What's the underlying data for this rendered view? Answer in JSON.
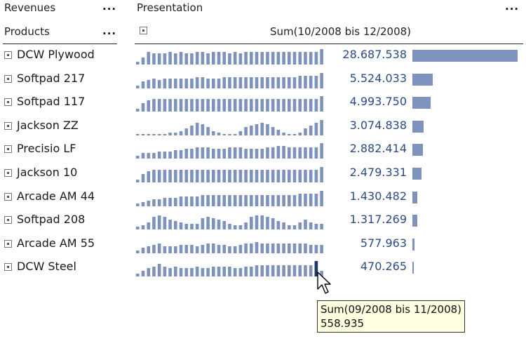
{
  "header": {
    "revenues_label": "Revenues",
    "products_label": "Products",
    "presentation_label": "Presentation",
    "sum_label": "Sum(10/2008 bis 12/2008)",
    "menu_dots": "..."
  },
  "products": [
    {
      "name": "DCW Plywood",
      "value": "28.687.538",
      "amount": 28687538,
      "spark": [
        2,
        5,
        9,
        8,
        8,
        8,
        9,
        8,
        9,
        8,
        8,
        9,
        9,
        8,
        9,
        9,
        9,
        8,
        9,
        8,
        9,
        9,
        9,
        9,
        9,
        9,
        9,
        9,
        9,
        9,
        9,
        9,
        9,
        9,
        11
      ]
    },
    {
      "name": "Softpad 217",
      "value": "5.524.033",
      "amount": 5524033,
      "spark": [
        2,
        5,
        6,
        7,
        6,
        7,
        7,
        7,
        7,
        7,
        7,
        8,
        8,
        7,
        7,
        7,
        8,
        8,
        8,
        8,
        8,
        8,
        8,
        8,
        8,
        8,
        8,
        8,
        8,
        8,
        9,
        9,
        9,
        9,
        11
      ]
    },
    {
      "name": "Softpad 117",
      "value": "4.993.750",
      "amount": 4993750,
      "spark": [
        2,
        6,
        8,
        9,
        9,
        9,
        9,
        9,
        9,
        9,
        9,
        9,
        9,
        9,
        9,
        9,
        9,
        9,
        9,
        9,
        9,
        9,
        9,
        9,
        9,
        9,
        9,
        9,
        9,
        9,
        9,
        9,
        9,
        9,
        11
      ]
    },
    {
      "name": "Jackson ZZ",
      "value": "3.074.838",
      "amount": 3074838,
      "spark": [
        1,
        1,
        1,
        1,
        1,
        1,
        2,
        2,
        3,
        5,
        7,
        9,
        8,
        6,
        3,
        2,
        1,
        1,
        1,
        3,
        6,
        7,
        8,
        9,
        8,
        6,
        4,
        2,
        1,
        1,
        2,
        5,
        7,
        9,
        11
      ]
    },
    {
      "name": "Precisio LF",
      "value": "2.882.414",
      "amount": 2882414,
      "spark": [
        2,
        4,
        4,
        4,
        5,
        5,
        5,
        6,
        6,
        7,
        7,
        8,
        8,
        8,
        7,
        7,
        7,
        8,
        8,
        8,
        7,
        7,
        7,
        7,
        8,
        8,
        9,
        9,
        8,
        8,
        8,
        8,
        8,
        8,
        11
      ]
    },
    {
      "name": "Jackson 10",
      "value": "2.479.331",
      "amount": 2479331,
      "spark": [
        2,
        6,
        8,
        9,
        9,
        9,
        9,
        9,
        9,
        9,
        9,
        9,
        9,
        9,
        9,
        9,
        9,
        9,
        9,
        9,
        9,
        9,
        9,
        9,
        9,
        9,
        9,
        9,
        9,
        9,
        9,
        9,
        9,
        9,
        11
      ]
    },
    {
      "name": "Arcade AM 44",
      "value": "1.430.482",
      "amount": 1430482,
      "spark": [
        2,
        3,
        4,
        5,
        5,
        6,
        6,
        6,
        7,
        7,
        7,
        7,
        8,
        8,
        8,
        8,
        8,
        8,
        8,
        8,
        8,
        8,
        8,
        8,
        8,
        8,
        8,
        8,
        8,
        8,
        9,
        9,
        9,
        9,
        11
      ]
    },
    {
      "name": "Softpad 208",
      "value": "1.317.269",
      "amount": 1317269,
      "spark": [
        2,
        3,
        5,
        9,
        10,
        9,
        7,
        6,
        5,
        4,
        4,
        4,
        8,
        9,
        8,
        7,
        6,
        4,
        3,
        3,
        5,
        9,
        10,
        10,
        9,
        8,
        6,
        5,
        3,
        3,
        5,
        7,
        5,
        4,
        4
      ]
    },
    {
      "name": "Arcade AM 55",
      "value": "577.963",
      "amount": 577963,
      "spark": [
        2,
        4,
        5,
        6,
        7,
        5,
        5,
        5,
        6,
        6,
        6,
        5,
        6,
        7,
        7,
        6,
        6,
        5,
        5,
        6,
        7,
        7,
        8,
        7,
        7,
        7,
        7,
        7,
        7,
        7,
        7,
        7,
        6,
        6,
        6
      ]
    },
    {
      "name": "DCW Steel",
      "value": "470.265",
      "amount": 470265,
      "spark": [
        2,
        4,
        6,
        7,
        9,
        7,
        6,
        7,
        6,
        6,
        6,
        7,
        6,
        6,
        7,
        7,
        7,
        7,
        6,
        6,
        7,
        7,
        8,
        8,
        8,
        8,
        8,
        8,
        8,
        8,
        8,
        8,
        8,
        11,
        4
      ]
    }
  ],
  "tooltip": {
    "line1": "Sum(09/2008 bis 11/2008)",
    "line2": "558.935"
  },
  "colors": {
    "spark_bar": "#7d93bd",
    "spark_highlight": "#1f3566",
    "value_text": "#2b4a86"
  }
}
